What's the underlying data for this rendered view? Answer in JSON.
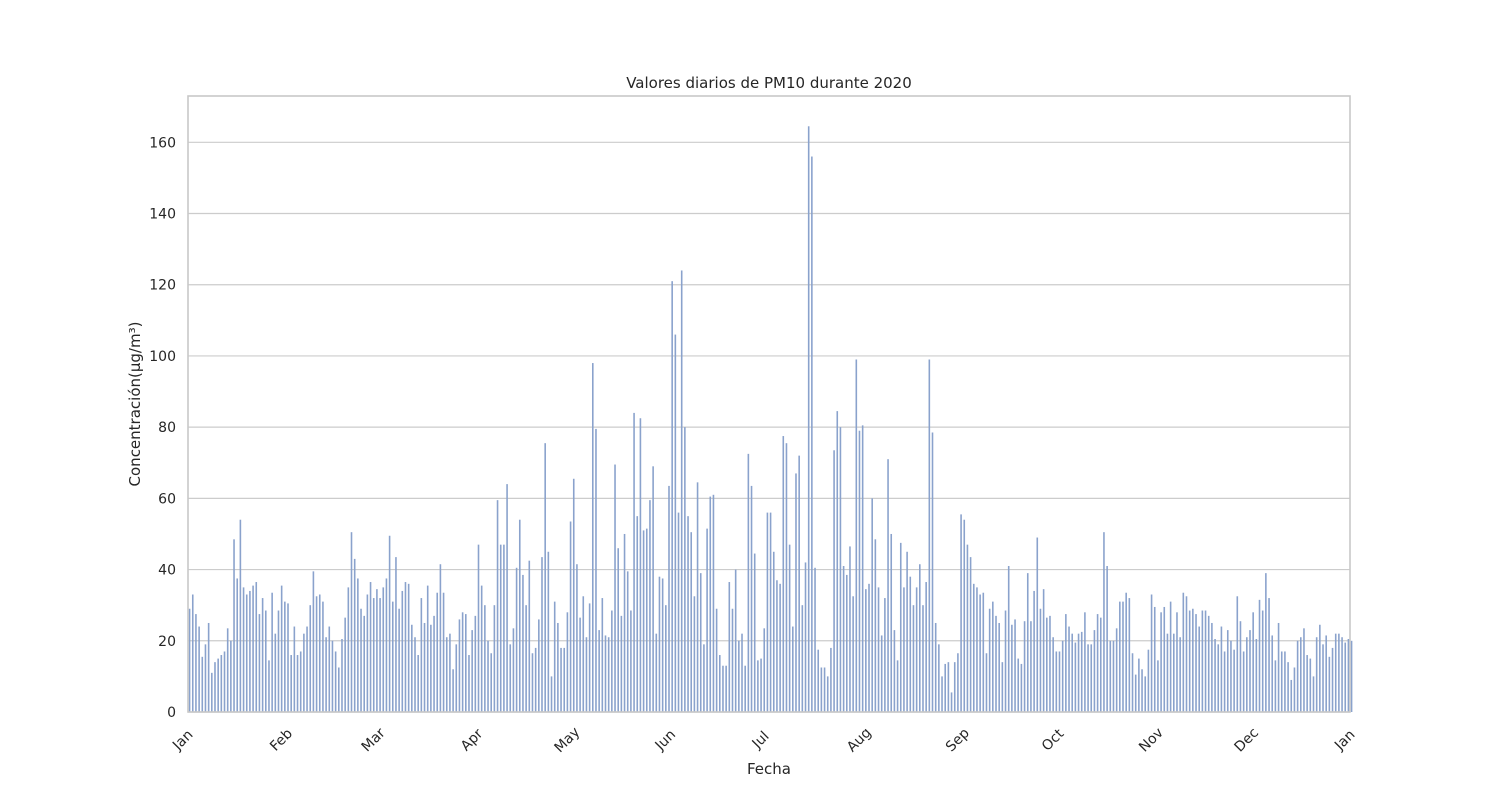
{
  "chart_data": {
    "type": "bar",
    "title": "Valores diarios de PM10 durante 2020",
    "xlabel": "Fecha",
    "ylabel": "Concentración(µg/m³)",
    "ylim": [
      0,
      173
    ],
    "yticks": [
      0,
      20,
      40,
      60,
      80,
      100,
      120,
      140,
      160
    ],
    "xticks": [
      {
        "label": "Jan",
        "date": "2020-01-01"
      },
      {
        "label": "Feb",
        "date": "2020-02-01"
      },
      {
        "label": "Mar",
        "date": "2020-03-01"
      },
      {
        "label": "Apr",
        "date": "2020-04-01"
      },
      {
        "label": "May",
        "date": "2020-05-01"
      },
      {
        "label": "Jun",
        "date": "2020-06-01"
      },
      {
        "label": "Jul",
        "date": "2020-07-01"
      },
      {
        "label": "Aug",
        "date": "2020-08-01"
      },
      {
        "label": "Sep",
        "date": "2020-09-01"
      },
      {
        "label": "Oct",
        "date": "2020-10-01"
      },
      {
        "label": "Nov",
        "date": "2020-11-01"
      },
      {
        "label": "Dec",
        "date": "2020-12-01"
      },
      {
        "label": "Jan",
        "date": "2021-01-01"
      }
    ],
    "grid": "horizontal",
    "bar_color": "#8aa2cc",
    "series": [
      {
        "x_start": "2020-01-01",
        "x_step": "1 day",
        "values": [
          29,
          33,
          27.5,
          24,
          15.5,
          19,
          25,
          11,
          14,
          15,
          16,
          17,
          23.5,
          20,
          48.5,
          37.5,
          54,
          35,
          33,
          34,
          35.5,
          36.5,
          27.5,
          32,
          28.5,
          14.5,
          33.5,
          22,
          28.5,
          35.5,
          31,
          30.5,
          16,
          24,
          16,
          17,
          22,
          24,
          30,
          39.5,
          32.5,
          33,
          31,
          21,
          24,
          20,
          17,
          12.5,
          20.5,
          26.5,
          35,
          50.5,
          43,
          37.5,
          29,
          27,
          33,
          36.5,
          32,
          34.5,
          32,
          35,
          37.5,
          49.5,
          31,
          43.5,
          29,
          34,
          36.5,
          36,
          24.5,
          21,
          16,
          32,
          25,
          35.5,
          24.5,
          27,
          33.5,
          41.5,
          33.5,
          21,
          22,
          12,
          19,
          26,
          28,
          27.5,
          16,
          23,
          27,
          47,
          35.5,
          30,
          20,
          16.5,
          30,
          59.5,
          47,
          47,
          64,
          19,
          23.5,
          40.5,
          54,
          38.5,
          30,
          42.5,
          16.5,
          18,
          26,
          43.5,
          75.5,
          45,
          10,
          31,
          25,
          18,
          18,
          28,
          53.5,
          65.5,
          41.5,
          26.5,
          32.5,
          21,
          30.5,
          98,
          79.5,
          23,
          32,
          21.5,
          21,
          28.5,
          69.5,
          46,
          27,
          50,
          39.5,
          28.5,
          84,
          55,
          82.5,
          51,
          51.5,
          59.5,
          69,
          22,
          38,
          37.5,
          30,
          63.5,
          121,
          106,
          56,
          124,
          80,
          55,
          50.5,
          32.5,
          64.5,
          39,
          19,
          51.5,
          60.5,
          61,
          29,
          16,
          13,
          13,
          36.5,
          29,
          40,
          20,
          22,
          13,
          72.5,
          63.5,
          44.5,
          14.5,
          15,
          23.5,
          56,
          56,
          45,
          37,
          36,
          77.5,
          75.5,
          47,
          24,
          67,
          72,
          30,
          42,
          164.5,
          156,
          40.5,
          17.5,
          12.5,
          12.5,
          10,
          18,
          73.5,
          84.5,
          80,
          41,
          38.5,
          46.5,
          32.5,
          99,
          79,
          80.5,
          34.5,
          36,
          60,
          48.5,
          35,
          21.5,
          32,
          71,
          50,
          23,
          14.5,
          47.5,
          35,
          45,
          38,
          30,
          35,
          41.5,
          30,
          36.5,
          99,
          78.5,
          25,
          19,
          10,
          13.5,
          14,
          5.5,
          14,
          16.5,
          55.5,
          54,
          47,
          43.5,
          36,
          35,
          33,
          33.5,
          16.5,
          29,
          31,
          27,
          25,
          14,
          28.5,
          41,
          24.5,
          26,
          15,
          13.5,
          25.5,
          39,
          25.5,
          34,
          49,
          29,
          34.5,
          26.5,
          27,
          21,
          17,
          17,
          20,
          27.5,
          24,
          22,
          19.5,
          22,
          22.5,
          28,
          19,
          19,
          23,
          27.5,
          26.5,
          50.5,
          41,
          20,
          20,
          23.5,
          31,
          31,
          33.5,
          32,
          16.5,
          10.5,
          15,
          12,
          10,
          17.5,
          33,
          29.5,
          14.5,
          28,
          29.5,
          22,
          31,
          22,
          28,
          21,
          33.5,
          32.5,
          28.5,
          29,
          27.5,
          24,
          28.5,
          28.5,
          27,
          25,
          20.5,
          19,
          24,
          17,
          23,
          20,
          17.5,
          32.5,
          25.5,
          17,
          21,
          23,
          28,
          20.5,
          31.5,
          28.5,
          39,
          32,
          21.5,
          14.5,
          25,
          17,
          17,
          14,
          9,
          12.5,
          20,
          21,
          23.5,
          16,
          15,
          10,
          21,
          24.5,
          19,
          21.5,
          15.5,
          18,
          22,
          22,
          21,
          19.5,
          20.5,
          20
        ]
      }
    ]
  }
}
